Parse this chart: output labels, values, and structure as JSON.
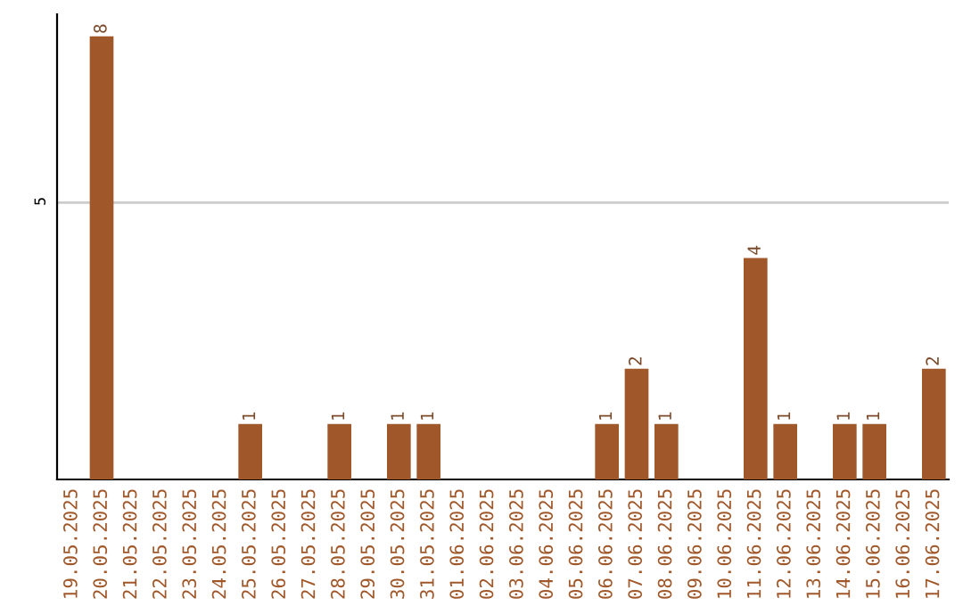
{
  "chart_data": {
    "type": "bar",
    "categories": [
      "19.05.2025",
      "20.05.2025",
      "21.05.2025",
      "22.05.2025",
      "23.05.2025",
      "24.05.2025",
      "25.05.2025",
      "26.05.2025",
      "27.05.2025",
      "28.05.2025",
      "29.05.2025",
      "30.05.2025",
      "31.05.2025",
      "01.06.2025",
      "02.06.2025",
      "03.06.2025",
      "04.06.2025",
      "05.06.2025",
      "06.06.2025",
      "07.06.2025",
      "08.06.2025",
      "09.06.2025",
      "10.06.2025",
      "11.06.2025",
      "12.06.2025",
      "13.06.2025",
      "14.06.2025",
      "15.06.2025",
      "16.06.2025",
      "17.06.2025"
    ],
    "values": [
      0,
      8,
      0,
      0,
      0,
      0,
      1,
      0,
      0,
      1,
      0,
      1,
      1,
      0,
      0,
      0,
      0,
      0,
      1,
      2,
      1,
      0,
      0,
      4,
      1,
      0,
      1,
      1,
      0,
      2
    ],
    "value_labels": [
      null,
      "8",
      null,
      null,
      null,
      null,
      "1",
      null,
      null,
      "1",
      null,
      "1",
      "1",
      null,
      null,
      null,
      null,
      null,
      "1",
      "2",
      "1",
      null,
      null,
      "4",
      "1",
      null,
      "1",
      "1",
      null,
      "2"
    ],
    "color": "#a0582a",
    "ylim": [
      0,
      8.4
    ],
    "yticks": [
      5
    ],
    "grid": "y",
    "legend": false
  }
}
